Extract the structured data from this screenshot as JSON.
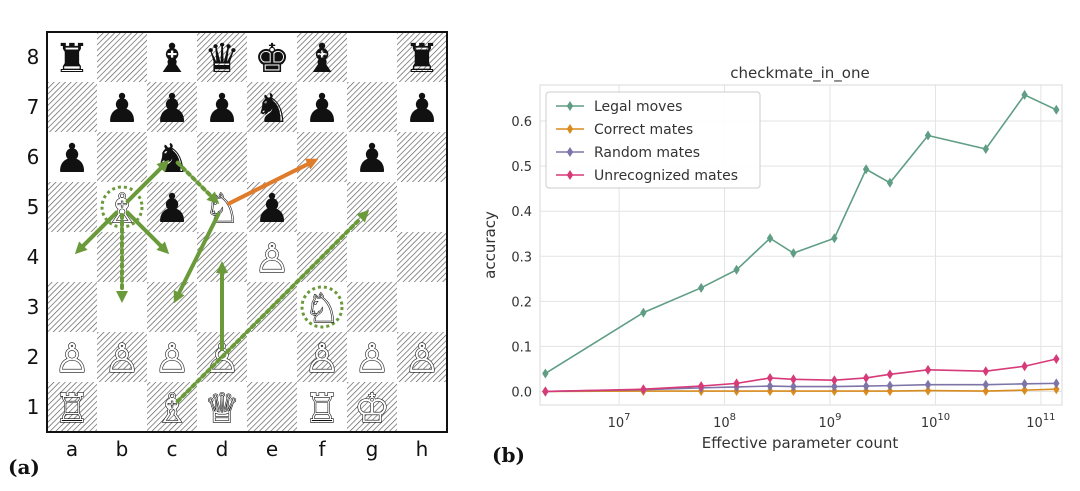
{
  "panel_labels": [
    "(a)",
    "(b)"
  ],
  "chess": {
    "files": [
      "a",
      "b",
      "c",
      "d",
      "e",
      "f",
      "g",
      "h"
    ],
    "ranks": [
      "8",
      "7",
      "6",
      "5",
      "4",
      "3",
      "2",
      "1"
    ],
    "pieces": [
      {
        "square": "a8",
        "glyph": "♜",
        "color": "black"
      },
      {
        "square": "c8",
        "glyph": "♝",
        "color": "black"
      },
      {
        "square": "d8",
        "glyph": "♛",
        "color": "black"
      },
      {
        "square": "e8",
        "glyph": "♚",
        "color": "black"
      },
      {
        "square": "f8",
        "glyph": "♝",
        "color": "black"
      },
      {
        "square": "h8",
        "glyph": "♜",
        "color": "black"
      },
      {
        "square": "b7",
        "glyph": "♟",
        "color": "black"
      },
      {
        "square": "c7",
        "glyph": "♟",
        "color": "black"
      },
      {
        "square": "d7",
        "glyph": "♟",
        "color": "black"
      },
      {
        "square": "e7",
        "glyph": "♞",
        "color": "black"
      },
      {
        "square": "f7",
        "glyph": "♟",
        "color": "black"
      },
      {
        "square": "h7",
        "glyph": "♟",
        "color": "black"
      },
      {
        "square": "a6",
        "glyph": "♟",
        "color": "black"
      },
      {
        "square": "c6",
        "glyph": "♞",
        "color": "black"
      },
      {
        "square": "g6",
        "glyph": "♟",
        "color": "black"
      },
      {
        "square": "c5",
        "glyph": "♟",
        "color": "black"
      },
      {
        "square": "e5",
        "glyph": "♟",
        "color": "black"
      },
      {
        "square": "b5",
        "glyph": "♗",
        "color": "white"
      },
      {
        "square": "d5",
        "glyph": "♘",
        "color": "white"
      },
      {
        "square": "e4",
        "glyph": "♙",
        "color": "white"
      },
      {
        "square": "f3",
        "glyph": "♘",
        "color": "white"
      },
      {
        "square": "a2",
        "glyph": "♙",
        "color": "white"
      },
      {
        "square": "b2",
        "glyph": "♙",
        "color": "white"
      },
      {
        "square": "c2",
        "glyph": "♙",
        "color": "white"
      },
      {
        "square": "d2",
        "glyph": "♙",
        "color": "white"
      },
      {
        "square": "f2",
        "glyph": "♙",
        "color": "white"
      },
      {
        "square": "g2",
        "glyph": "♙",
        "color": "white"
      },
      {
        "square": "h2",
        "glyph": "♙",
        "color": "white"
      },
      {
        "square": "a1",
        "glyph": "♖",
        "color": "white"
      },
      {
        "square": "c1",
        "glyph": "♗",
        "color": "white"
      },
      {
        "square": "d1",
        "glyph": "♕",
        "color": "white"
      },
      {
        "square": "f1",
        "glyph": "♖",
        "color": "white"
      },
      {
        "square": "g1",
        "glyph": "♔",
        "color": "white"
      }
    ],
    "highlighted_squares": [
      "b5",
      "f3"
    ],
    "arrows": [
      {
        "from": "d5",
        "to": "f6",
        "style": "solid",
        "color": "#e07b2a"
      },
      {
        "from": "b5",
        "to": "a4",
        "style": "solid",
        "color": "#6a9a3a"
      },
      {
        "from": "b5",
        "to": "c4",
        "style": "solid",
        "color": "#6a9a3a"
      },
      {
        "from": "b5",
        "to": "c6",
        "style": "solid",
        "color": "#6a9a3a"
      },
      {
        "from": "d5",
        "to": "c3",
        "style": "solid",
        "color": "#6a9a3a"
      },
      {
        "from": "d2",
        "to": "d4",
        "style": "solid",
        "color": "#6a9a3a"
      },
      {
        "from": "b5",
        "to": "b3",
        "style": "dotted",
        "color": "#6a9a3a"
      },
      {
        "from": "c6",
        "to": "d5",
        "style": "dotted",
        "color": "#6a9a3a"
      },
      {
        "from": "c1",
        "to": "g5",
        "style": "dotted",
        "color": "#6a9a3a"
      }
    ]
  },
  "chart_data": {
    "type": "line",
    "title": "checkmate_in_one",
    "xlabel": "Effective parameter count",
    "ylabel": "accuracy",
    "xscale": "log",
    "xlim_exp": [
      6.25,
      11.2
    ],
    "ylim": [
      -0.03,
      0.68
    ],
    "x_ticks": [
      {
        "base": "10",
        "exp": "7",
        "value": 10000000.0
      },
      {
        "base": "10",
        "exp": "8",
        "value": 100000000.0
      },
      {
        "base": "10",
        "exp": "9",
        "value": 1000000000.0
      },
      {
        "base": "10",
        "exp": "10",
        "value": 10000000000.0
      },
      {
        "base": "10",
        "exp": "11",
        "value": 100000000000.0
      }
    ],
    "y_ticks": [
      {
        "label": "0.0",
        "value": 0.0
      },
      {
        "label": "0.1",
        "value": 0.1
      },
      {
        "label": "0.2",
        "value": 0.2
      },
      {
        "label": "0.3",
        "value": 0.3
      },
      {
        "label": "0.4",
        "value": 0.4
      },
      {
        "label": "0.5",
        "value": 0.5
      },
      {
        "label": "0.6",
        "value": 0.6
      }
    ],
    "grid": true,
    "legend_position": "top-left",
    "x": [
      2000000.0,
      17000000.0,
      60000000.0,
      130000000.0,
      270000000.0,
      450000000.0,
      1100000000.0,
      2200000000.0,
      3700000000.0,
      8500000000.0,
      30000000000.0,
      70000000000.0,
      140000000000.0
    ],
    "series": [
      {
        "name": "Legal moves",
        "color": "#5f9e85",
        "values": [
          0.04,
          0.175,
          0.23,
          0.27,
          0.34,
          0.307,
          0.34,
          0.493,
          0.463,
          0.568,
          0.538,
          0.658,
          0.625
        ]
      },
      {
        "name": "Correct mates",
        "color": "#d98b1d",
        "values": [
          0.0,
          0.001,
          0.001,
          0.001,
          0.001,
          0.001,
          0.001,
          0.001,
          0.001,
          0.002,
          0.001,
          0.003,
          0.005
        ]
      },
      {
        "name": "Random mates",
        "color": "#7d74a8",
        "values": [
          0.0,
          0.004,
          0.008,
          0.01,
          0.012,
          0.011,
          0.011,
          0.012,
          0.013,
          0.015,
          0.015,
          0.017,
          0.018
        ]
      },
      {
        "name": "Unrecognized mates",
        "color": "#d63a78",
        "values": [
          0.0,
          0.005,
          0.012,
          0.018,
          0.03,
          0.027,
          0.025,
          0.03,
          0.038,
          0.048,
          0.045,
          0.056,
          0.072
        ]
      }
    ]
  }
}
